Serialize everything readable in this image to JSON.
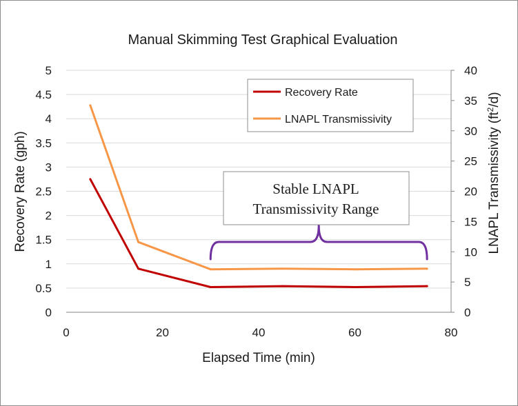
{
  "chart_data": {
    "type": "line",
    "title": "Manual Skimming Test Graphical Evaluation",
    "xlabel": "Elapsed Time (min)",
    "ylabel": "Recovery Rate (gph)",
    "y2label_main": "LNAPL Transmissivity (ft",
    "y2label_sup": "2",
    "y2label_end": "/d)",
    "xlim": [
      0,
      80
    ],
    "ylim": [
      0,
      5
    ],
    "y2lim": [
      0,
      40
    ],
    "xticks": [
      0,
      20,
      40,
      60,
      80
    ],
    "yticks": [
      0,
      0.5,
      1,
      1.5,
      2,
      2.5,
      3,
      3.5,
      4,
      4.5,
      5
    ],
    "y2ticks": [
      0,
      5,
      10,
      15,
      20,
      25,
      30,
      35,
      40
    ],
    "grid": "horizontal",
    "legend_position": "top-right",
    "series": [
      {
        "name": "Recovery Rate",
        "axis": "left",
        "color": "#c00000",
        "x": [
          5,
          15,
          30,
          45,
          60,
          75
        ],
        "y": [
          2.75,
          0.9,
          0.52,
          0.54,
          0.52,
          0.54
        ]
      },
      {
        "name": "LNAPL Transmissivity",
        "axis": "right",
        "color": "#f79646",
        "x": [
          5,
          15,
          30,
          45,
          60,
          75
        ],
        "y": [
          34.2,
          11.6,
          7.1,
          7.2,
          7.1,
          7.2
        ]
      }
    ],
    "annotation": {
      "lines": [
        "Stable LNAPL",
        "Transmissivity Range"
      ],
      "range_x": [
        30,
        75
      ],
      "brace_color": "#7030a0"
    }
  }
}
